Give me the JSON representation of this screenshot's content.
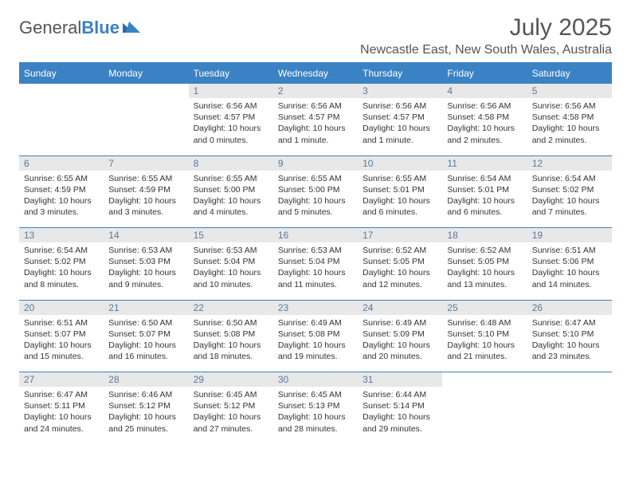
{
  "brand": {
    "name_a": "General",
    "name_b": "Blue"
  },
  "title": "July 2025",
  "location": "Newcastle East, New South Wales, Australia",
  "colors": {
    "header_bg": "#3b82c4",
    "header_text": "#ffffff",
    "daynum_bg": "#e8e8e8",
    "daynum_text": "#5a7a99",
    "body_text": "#333333",
    "border": "#3b82c4"
  },
  "day_headers": [
    "Sunday",
    "Monday",
    "Tuesday",
    "Wednesday",
    "Thursday",
    "Friday",
    "Saturday"
  ],
  "weeks": [
    [
      null,
      null,
      {
        "n": "1",
        "sr": "Sunrise: 6:56 AM",
        "ss": "Sunset: 4:57 PM",
        "dl": "Daylight: 10 hours and 0 minutes."
      },
      {
        "n": "2",
        "sr": "Sunrise: 6:56 AM",
        "ss": "Sunset: 4:57 PM",
        "dl": "Daylight: 10 hours and 1 minute."
      },
      {
        "n": "3",
        "sr": "Sunrise: 6:56 AM",
        "ss": "Sunset: 4:57 PM",
        "dl": "Daylight: 10 hours and 1 minute."
      },
      {
        "n": "4",
        "sr": "Sunrise: 6:56 AM",
        "ss": "Sunset: 4:58 PM",
        "dl": "Daylight: 10 hours and 2 minutes."
      },
      {
        "n": "5",
        "sr": "Sunrise: 6:56 AM",
        "ss": "Sunset: 4:58 PM",
        "dl": "Daylight: 10 hours and 2 minutes."
      }
    ],
    [
      {
        "n": "6",
        "sr": "Sunrise: 6:55 AM",
        "ss": "Sunset: 4:59 PM",
        "dl": "Daylight: 10 hours and 3 minutes."
      },
      {
        "n": "7",
        "sr": "Sunrise: 6:55 AM",
        "ss": "Sunset: 4:59 PM",
        "dl": "Daylight: 10 hours and 3 minutes."
      },
      {
        "n": "8",
        "sr": "Sunrise: 6:55 AM",
        "ss": "Sunset: 5:00 PM",
        "dl": "Daylight: 10 hours and 4 minutes."
      },
      {
        "n": "9",
        "sr": "Sunrise: 6:55 AM",
        "ss": "Sunset: 5:00 PM",
        "dl": "Daylight: 10 hours and 5 minutes."
      },
      {
        "n": "10",
        "sr": "Sunrise: 6:55 AM",
        "ss": "Sunset: 5:01 PM",
        "dl": "Daylight: 10 hours and 6 minutes."
      },
      {
        "n": "11",
        "sr": "Sunrise: 6:54 AM",
        "ss": "Sunset: 5:01 PM",
        "dl": "Daylight: 10 hours and 6 minutes."
      },
      {
        "n": "12",
        "sr": "Sunrise: 6:54 AM",
        "ss": "Sunset: 5:02 PM",
        "dl": "Daylight: 10 hours and 7 minutes."
      }
    ],
    [
      {
        "n": "13",
        "sr": "Sunrise: 6:54 AM",
        "ss": "Sunset: 5:02 PM",
        "dl": "Daylight: 10 hours and 8 minutes."
      },
      {
        "n": "14",
        "sr": "Sunrise: 6:53 AM",
        "ss": "Sunset: 5:03 PM",
        "dl": "Daylight: 10 hours and 9 minutes."
      },
      {
        "n": "15",
        "sr": "Sunrise: 6:53 AM",
        "ss": "Sunset: 5:04 PM",
        "dl": "Daylight: 10 hours and 10 minutes."
      },
      {
        "n": "16",
        "sr": "Sunrise: 6:53 AM",
        "ss": "Sunset: 5:04 PM",
        "dl": "Daylight: 10 hours and 11 minutes."
      },
      {
        "n": "17",
        "sr": "Sunrise: 6:52 AM",
        "ss": "Sunset: 5:05 PM",
        "dl": "Daylight: 10 hours and 12 minutes."
      },
      {
        "n": "18",
        "sr": "Sunrise: 6:52 AM",
        "ss": "Sunset: 5:05 PM",
        "dl": "Daylight: 10 hours and 13 minutes."
      },
      {
        "n": "19",
        "sr": "Sunrise: 6:51 AM",
        "ss": "Sunset: 5:06 PM",
        "dl": "Daylight: 10 hours and 14 minutes."
      }
    ],
    [
      {
        "n": "20",
        "sr": "Sunrise: 6:51 AM",
        "ss": "Sunset: 5:07 PM",
        "dl": "Daylight: 10 hours and 15 minutes."
      },
      {
        "n": "21",
        "sr": "Sunrise: 6:50 AM",
        "ss": "Sunset: 5:07 PM",
        "dl": "Daylight: 10 hours and 16 minutes."
      },
      {
        "n": "22",
        "sr": "Sunrise: 6:50 AM",
        "ss": "Sunset: 5:08 PM",
        "dl": "Daylight: 10 hours and 18 minutes."
      },
      {
        "n": "23",
        "sr": "Sunrise: 6:49 AM",
        "ss": "Sunset: 5:08 PM",
        "dl": "Daylight: 10 hours and 19 minutes."
      },
      {
        "n": "24",
        "sr": "Sunrise: 6:49 AM",
        "ss": "Sunset: 5:09 PM",
        "dl": "Daylight: 10 hours and 20 minutes."
      },
      {
        "n": "25",
        "sr": "Sunrise: 6:48 AM",
        "ss": "Sunset: 5:10 PM",
        "dl": "Daylight: 10 hours and 21 minutes."
      },
      {
        "n": "26",
        "sr": "Sunrise: 6:47 AM",
        "ss": "Sunset: 5:10 PM",
        "dl": "Daylight: 10 hours and 23 minutes."
      }
    ],
    [
      {
        "n": "27",
        "sr": "Sunrise: 6:47 AM",
        "ss": "Sunset: 5:11 PM",
        "dl": "Daylight: 10 hours and 24 minutes."
      },
      {
        "n": "28",
        "sr": "Sunrise: 6:46 AM",
        "ss": "Sunset: 5:12 PM",
        "dl": "Daylight: 10 hours and 25 minutes."
      },
      {
        "n": "29",
        "sr": "Sunrise: 6:45 AM",
        "ss": "Sunset: 5:12 PM",
        "dl": "Daylight: 10 hours and 27 minutes."
      },
      {
        "n": "30",
        "sr": "Sunrise: 6:45 AM",
        "ss": "Sunset: 5:13 PM",
        "dl": "Daylight: 10 hours and 28 minutes."
      },
      {
        "n": "31",
        "sr": "Sunrise: 6:44 AM",
        "ss": "Sunset: 5:14 PM",
        "dl": "Daylight: 10 hours and 29 minutes."
      },
      null,
      null
    ]
  ]
}
